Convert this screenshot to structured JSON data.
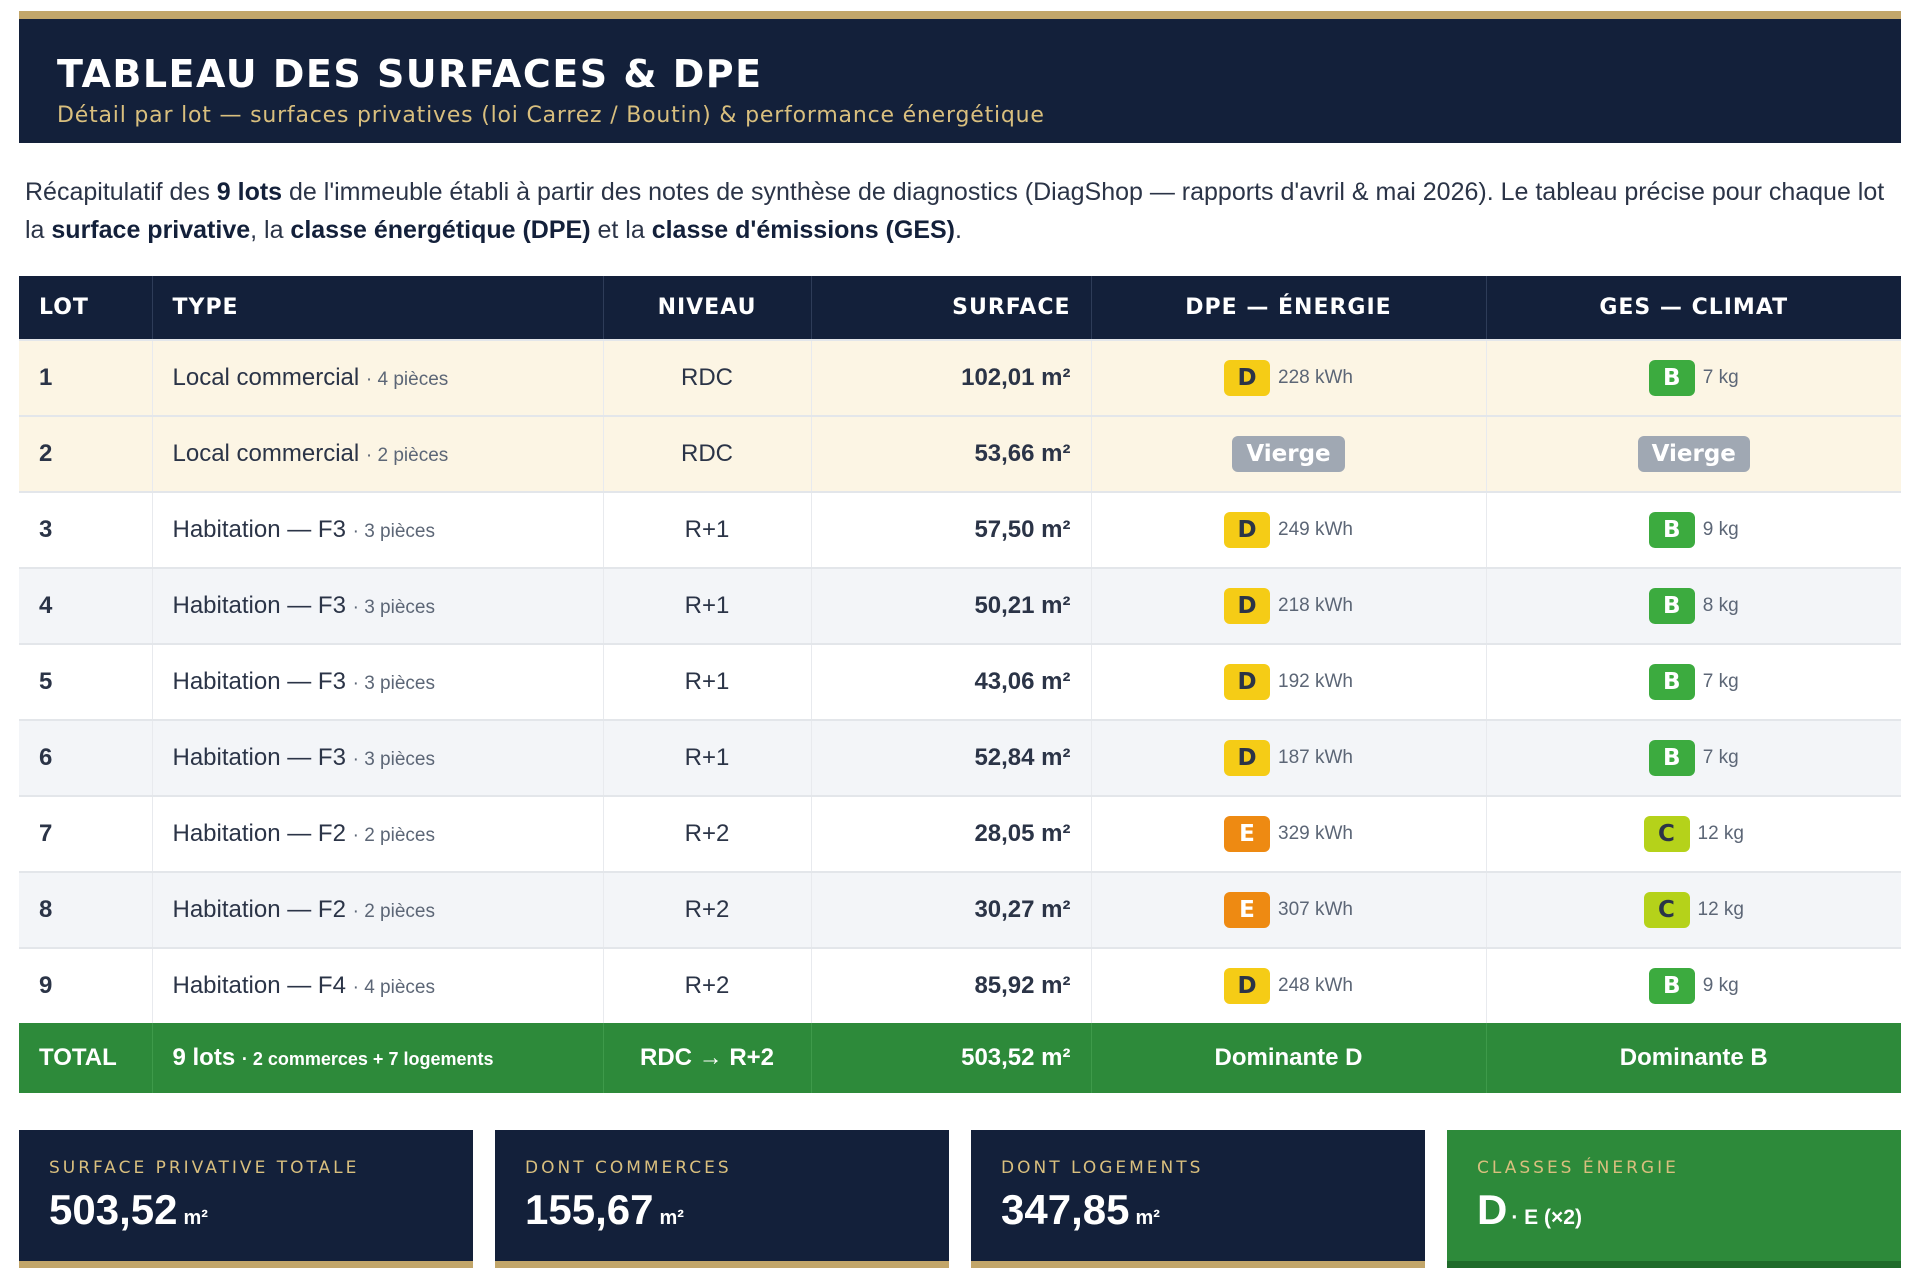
{
  "header": {
    "title": "TABLEAU DES SURFACES & DPE",
    "subtitle": "Détail par lot — surfaces privatives (loi Carrez / Boutin) & performance énergétique"
  },
  "intro": {
    "t1": "Récapitulatif des ",
    "b1": "9 lots",
    "t2": " de l'immeuble établi à partir des notes de synthèse de diagnostics (DiagShop — rapports d'avril & mai 2026). Le tableau précise pour chaque lot la ",
    "b2": "surface privative",
    "t3": ", la ",
    "b3": "classe énergétique (DPE)",
    "t4": " et la ",
    "b4": "classe d'émissions (GES)",
    "t5": "."
  },
  "table": {
    "headers": [
      "LOT",
      "TYPE",
      "NIVEAU",
      "SURFACE",
      "DPE — ÉNERGIE",
      "GES — CLIMAT"
    ],
    "rows": [
      {
        "lot": "1",
        "type": "Local commercial",
        "pieces": "· 4 pièces",
        "niveau": "RDC",
        "surface": "102,01 m²",
        "dpe": "D",
        "dpe_val": "228 kWh",
        "ges": "B",
        "ges_val": "7 kg"
      },
      {
        "lot": "2",
        "type": "Local commercial",
        "pieces": "· 2 pièces",
        "niveau": "RDC",
        "surface": "53,66 m²",
        "dpe": "Vierge",
        "dpe_val": "",
        "ges": "Vierge",
        "ges_val": ""
      },
      {
        "lot": "3",
        "type": "Habitation — F3",
        "pieces": "· 3 pièces",
        "niveau": "R+1",
        "surface": "57,50 m²",
        "dpe": "D",
        "dpe_val": "249 kWh",
        "ges": "B",
        "ges_val": "9 kg"
      },
      {
        "lot": "4",
        "type": "Habitation — F3",
        "pieces": "· 3 pièces",
        "niveau": "R+1",
        "surface": "50,21 m²",
        "dpe": "D",
        "dpe_val": "218 kWh",
        "ges": "B",
        "ges_val": "8 kg"
      },
      {
        "lot": "5",
        "type": "Habitation — F3",
        "pieces": "· 3 pièces",
        "niveau": "R+1",
        "surface": "43,06 m²",
        "dpe": "D",
        "dpe_val": "192 kWh",
        "ges": "B",
        "ges_val": "7 kg"
      },
      {
        "lot": "6",
        "type": "Habitation — F3",
        "pieces": "· 3 pièces",
        "niveau": "R+1",
        "surface": "52,84 m²",
        "dpe": "D",
        "dpe_val": "187 kWh",
        "ges": "B",
        "ges_val": "7 kg"
      },
      {
        "lot": "7",
        "type": "Habitation — F2",
        "pieces": "· 2 pièces",
        "niveau": "R+2",
        "surface": "28,05 m²",
        "dpe": "E",
        "dpe_val": "329 kWh",
        "ges": "C",
        "ges_val": "12 kg"
      },
      {
        "lot": "8",
        "type": "Habitation — F2",
        "pieces": "· 2 pièces",
        "niveau": "R+2",
        "surface": "30,27 m²",
        "dpe": "E",
        "dpe_val": "307 kWh",
        "ges": "C",
        "ges_val": "12 kg"
      },
      {
        "lot": "9",
        "type": "Habitation — F4",
        "pieces": "· 4 pièces",
        "niveau": "R+2",
        "surface": "85,92 m²",
        "dpe": "D",
        "dpe_val": "248 kWh",
        "ges": "B",
        "ges_val": "9 kg"
      }
    ],
    "total": {
      "label": "TOTAL",
      "lots": "9 lots",
      "lots_detail": "· 2 commerces + 7 logements",
      "niveau": "RDC → R+2",
      "surface": "503,52 m²",
      "dpe": "Dominante D",
      "ges": "Dominante B"
    }
  },
  "class_colors": {
    "B": {
      "bg": "#3cab3f",
      "fg": "#ffffff"
    },
    "C": {
      "bg": "#b5d21a",
      "fg": "#2b3447"
    },
    "D": {
      "bg": "#f5cc16",
      "fg": "#2b3447"
    },
    "E": {
      "bg": "#ee8a12",
      "fg": "#ffffff"
    }
  },
  "cards": [
    {
      "label": "SURFACE PRIVATIVE TOTALE",
      "value": "503,52",
      "unit": "m²"
    },
    {
      "label": "DONT COMMERCES",
      "value": "155,67",
      "unit": "m²"
    },
    {
      "label": "DONT LOGEMENTS",
      "value": "347,85",
      "unit": "m²"
    },
    {
      "label": "CLASSES ÉNERGIE",
      "value": "D",
      "aux": "· E (×2)"
    }
  ]
}
